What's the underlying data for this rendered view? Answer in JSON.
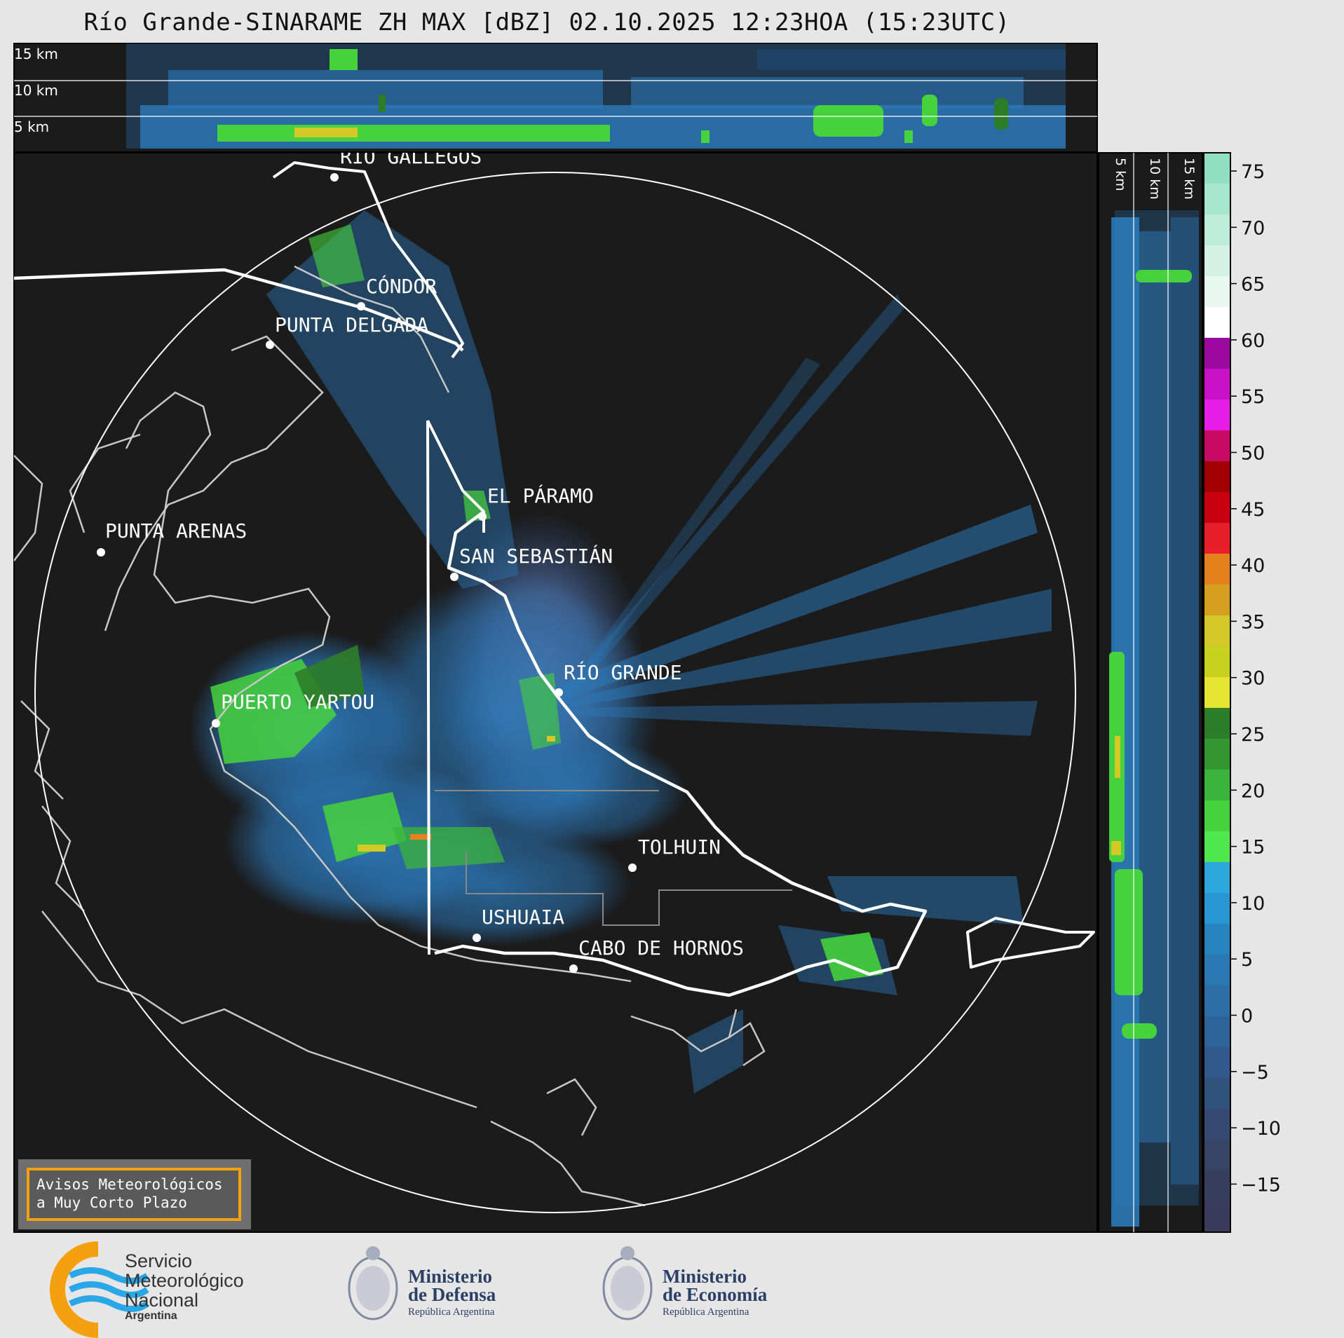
{
  "title": "Río Grande-SINARAME ZH MAX [dBZ] 02.10.2025 12:23HOA (15:23UTC)",
  "top_panel": {
    "heights": [
      "15 km",
      "10 km",
      "5 km"
    ]
  },
  "side_panel": {
    "heights": [
      "5 km",
      "10 km",
      "15 km"
    ]
  },
  "places": [
    {
      "name": "RÍO GALLEGOS"
    },
    {
      "name": "CÓNDOR"
    },
    {
      "name": "PUNTA DELGADA"
    },
    {
      "name": "EL PÁRAMO"
    },
    {
      "name": "PUNTA ARENAS"
    },
    {
      "name": "SAN SEBASTIÁN"
    },
    {
      "name": "RÍO GRANDE"
    },
    {
      "name": "PUERTO YARTOU"
    },
    {
      "name": "TOLHUIN"
    },
    {
      "name": "USHUAIA"
    },
    {
      "name": "CABO DE HORNOS"
    }
  ],
  "colorbar": {
    "ticks": [
      "75",
      "70",
      "65",
      "60",
      "55",
      "50",
      "45",
      "40",
      "35",
      "30",
      "25",
      "20",
      "15",
      "10",
      "5",
      "0",
      "−5",
      "−10",
      "−15"
    ],
    "segments": [
      "#8fe0c0",
      "#a6e6cc",
      "#bdecd8",
      "#d3f2e4",
      "#e8f8f0",
      "#ffffff",
      "#9c0aa0",
      "#c812c8",
      "#e81ee8",
      "#c80a64",
      "#a00000",
      "#c80010",
      "#e81e28",
      "#e6821e",
      "#d4a01e",
      "#d2c828",
      "#c8d21e",
      "#e6e632",
      "#2d7d28",
      "#329632",
      "#3cb43c",
      "#46d23c",
      "#50e650",
      "#2ca8dc",
      "#2896d2",
      "#2882be",
      "#2a78b4",
      "#2c6ea6",
      "#2e649a",
      "#305a8c",
      "#32527e",
      "#344a72",
      "#364466",
      "#383e5e",
      "#3a3a5a"
    ]
  },
  "notice": {
    "line1": "Avisos Meteorológicos",
    "line2": "a Muy Corto Plazo"
  },
  "logos": {
    "smn": {
      "line1": "Servicio",
      "line2": "Meteorológico",
      "line3": "Nacional",
      "line4": "Argentina"
    },
    "defensa": {
      "line1": "Ministerio",
      "line2": "de Defensa",
      "line3": "República Argentina"
    },
    "economia": {
      "line1": "Ministerio",
      "line2": "de Economía",
      "line3": "República Argentina"
    }
  },
  "colors": {
    "background": "#1b1b1b",
    "echo_blue": "#2c78b8",
    "echo_green": "#46d23c",
    "coast": "#c8c8c8",
    "border": "#ffffff",
    "notice_border": "#f5a10f"
  }
}
